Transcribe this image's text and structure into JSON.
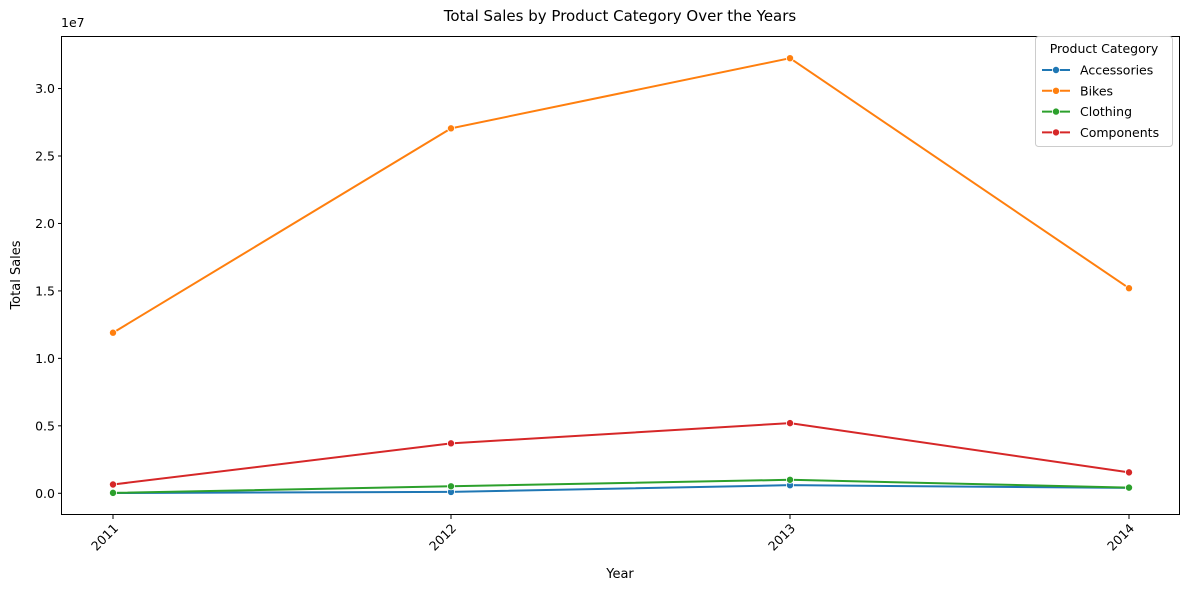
{
  "chart_data": {
    "type": "line",
    "title": "Total Sales by Product Category Over the Years",
    "xlabel": "Year",
    "ylabel": "Total Sales",
    "y_offset_label": "1e7",
    "x": [
      2011,
      2012,
      2013,
      2014
    ],
    "x_tick_labels": [
      "2011",
      "2012",
      "2013",
      "2014"
    ],
    "y_ticks": [
      0,
      5000000,
      10000000,
      15000000,
      20000000,
      25000000,
      30000000
    ],
    "y_tick_labels": [
      "0.0",
      "0.5",
      "1.0",
      "1.5",
      "2.0",
      "2.5",
      "3.0"
    ],
    "ylim": [
      -1610000,
      33820000
    ],
    "grid": false,
    "legend": {
      "title": "Product Category",
      "placement": "top-right"
    },
    "marker": "circle",
    "series": [
      {
        "name": "Accessories",
        "color": "#1f77b4",
        "values": [
          20000,
          100000,
          600000,
          400000
        ]
      },
      {
        "name": "Bikes",
        "color": "#ff7f0e",
        "values": [
          11900000,
          27050000,
          32250000,
          15200000
        ]
      },
      {
        "name": "Clothing",
        "color": "#2ca02c",
        "values": [
          30000,
          520000,
          1000000,
          420000
        ]
      },
      {
        "name": "Components",
        "color": "#d62728",
        "values": [
          650000,
          3700000,
          5200000,
          1550000
        ]
      }
    ]
  }
}
